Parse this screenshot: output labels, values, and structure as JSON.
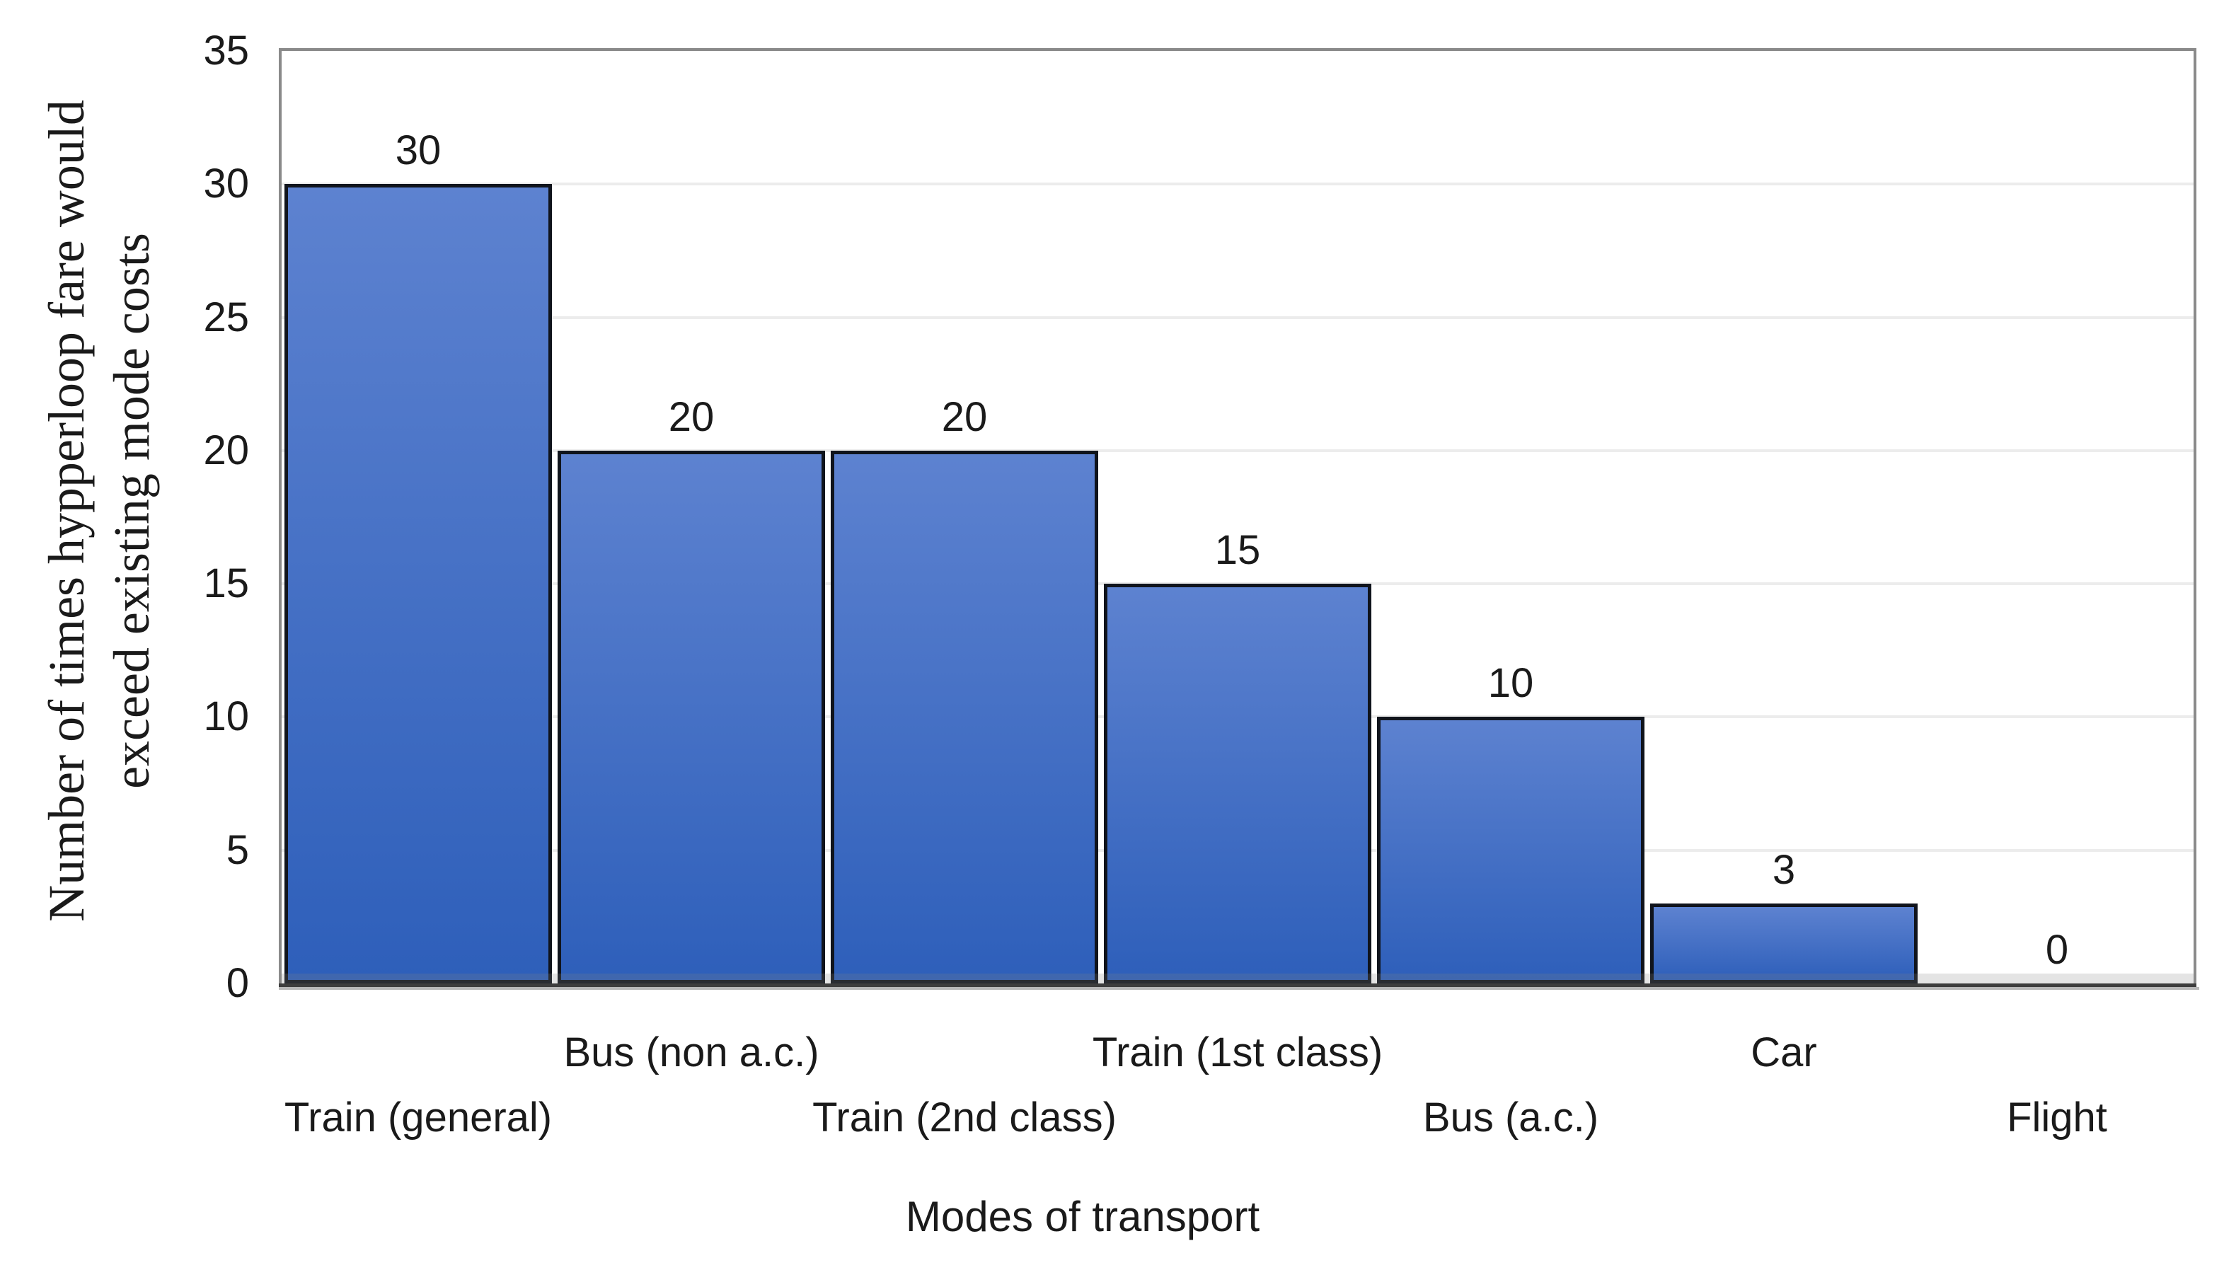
{
  "chart_data": {
    "type": "bar",
    "title": "",
    "categories": [
      "Train (general)",
      "Bus (non a.c.)",
      "Train (2nd class)",
      "Train (1st class)",
      "Bus (a.c.)",
      "Car",
      "Flight"
    ],
    "values": [
      30,
      20,
      20,
      15,
      10,
      3,
      0
    ],
    "data_labels": [
      "30",
      "20",
      "20",
      "15",
      "10",
      "3",
      "0"
    ],
    "xlabel": "Modes of transport",
    "ylabel": "Number of times hypperloop fare would exceed existing mode costs",
    "ylabel_line1": "Number of times hypperloop fare would",
    "ylabel_line2": "exceed existing mode costs",
    "ylim": [
      0,
      35
    ],
    "y_ticks": [
      0,
      5,
      10,
      15,
      20,
      25,
      30,
      35
    ],
    "grid": true,
    "legend_position": "none",
    "stagger_x_labels": true,
    "colors": {
      "bar_fill_top": "#5d82d0",
      "bar_fill_bottom": "#2e5fba",
      "bar_border": "#10141c",
      "plot_border": "#8a8a8a",
      "axis_line": "#3d3d3d",
      "axis_line_shadow": "#b8b8b8",
      "gridline": "#ececec",
      "text": "#1a1a1a"
    }
  }
}
